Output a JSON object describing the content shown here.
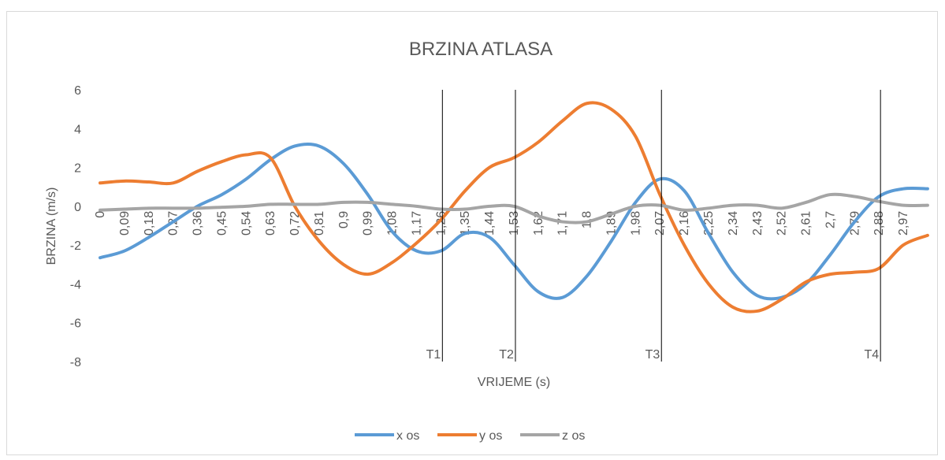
{
  "chart_data": {
    "type": "line",
    "title": "BRZINA ATLASA",
    "x_label": "VRIJEME (s)",
    "y_label": "BRZINA (m/s)",
    "categories": [
      "0",
      "0,09",
      "0,18",
      "0,27",
      "0,36",
      "0,45",
      "0,54",
      "0,63",
      "0,72",
      "0,81",
      "0,9",
      "0,99",
      "1,08",
      "1,17",
      "1,26",
      "1,35",
      "1,44",
      "1,53",
      "1,62",
      "1,71",
      "1,8",
      "1,89",
      "1,98",
      "2,07",
      "2,16",
      "2,25",
      "2,34",
      "2,43",
      "2,52",
      "2,61",
      "2,7",
      "2,79",
      "2,88",
      "2,97",
      null
    ],
    "series": [
      {
        "name": "x os",
        "color": "#5b9bd5",
        "values": [
          -2.65,
          -2.3,
          -1.6,
          -0.8,
          0.0,
          0.6,
          1.4,
          2.4,
          3.1,
          3.1,
          2.2,
          0.6,
          -1.3,
          -2.3,
          -2.3,
          -1.4,
          -1.6,
          -3.0,
          -4.4,
          -4.7,
          -3.6,
          -1.8,
          0.2,
          1.4,
          0.8,
          -1.4,
          -3.4,
          -4.6,
          -4.7,
          -4.0,
          -2.5,
          -0.8,
          0.5,
          0.9,
          0.9
        ]
      },
      {
        "name": "y os",
        "color": "#ed7d31",
        "values": [
          1.2,
          1.3,
          1.25,
          1.2,
          1.8,
          2.3,
          2.65,
          2.5,
          0.0,
          -1.8,
          -3.0,
          -3.5,
          -2.9,
          -1.9,
          -0.7,
          0.8,
          2.0,
          2.5,
          3.3,
          4.4,
          5.3,
          5.0,
          3.6,
          0.6,
          -2.0,
          -4.0,
          -5.2,
          -5.4,
          -4.8,
          -3.9,
          -3.5,
          -3.4,
          -3.2,
          -2.0,
          -1.5
        ]
      },
      {
        "name": "z os",
        "color": "#a5a5a5",
        "values": [
          -0.2,
          -0.15,
          -0.1,
          -0.1,
          -0.1,
          -0.05,
          0.0,
          0.1,
          0.1,
          0.1,
          0.2,
          0.2,
          0.1,
          0.0,
          -0.15,
          -0.15,
          0.0,
          0.0,
          -0.5,
          -0.8,
          -0.8,
          -0.4,
          0.0,
          0.05,
          -0.2,
          -0.1,
          0.05,
          0.05,
          -0.1,
          0.2,
          0.6,
          0.5,
          0.25,
          0.05,
          0.05
        ]
      }
    ],
    "ylim": [
      -8,
      6
    ],
    "yticks": [
      -8,
      -6,
      -4,
      -2,
      0,
      2,
      4,
      6
    ],
    "markers": [
      {
        "label": "T1",
        "at": "1,26"
      },
      {
        "label": "T2",
        "at": "1,53"
      },
      {
        "label": "T3",
        "at": "2,07"
      },
      {
        "label": "T4",
        "at": "2,88"
      }
    ],
    "legend": "bottom"
  }
}
